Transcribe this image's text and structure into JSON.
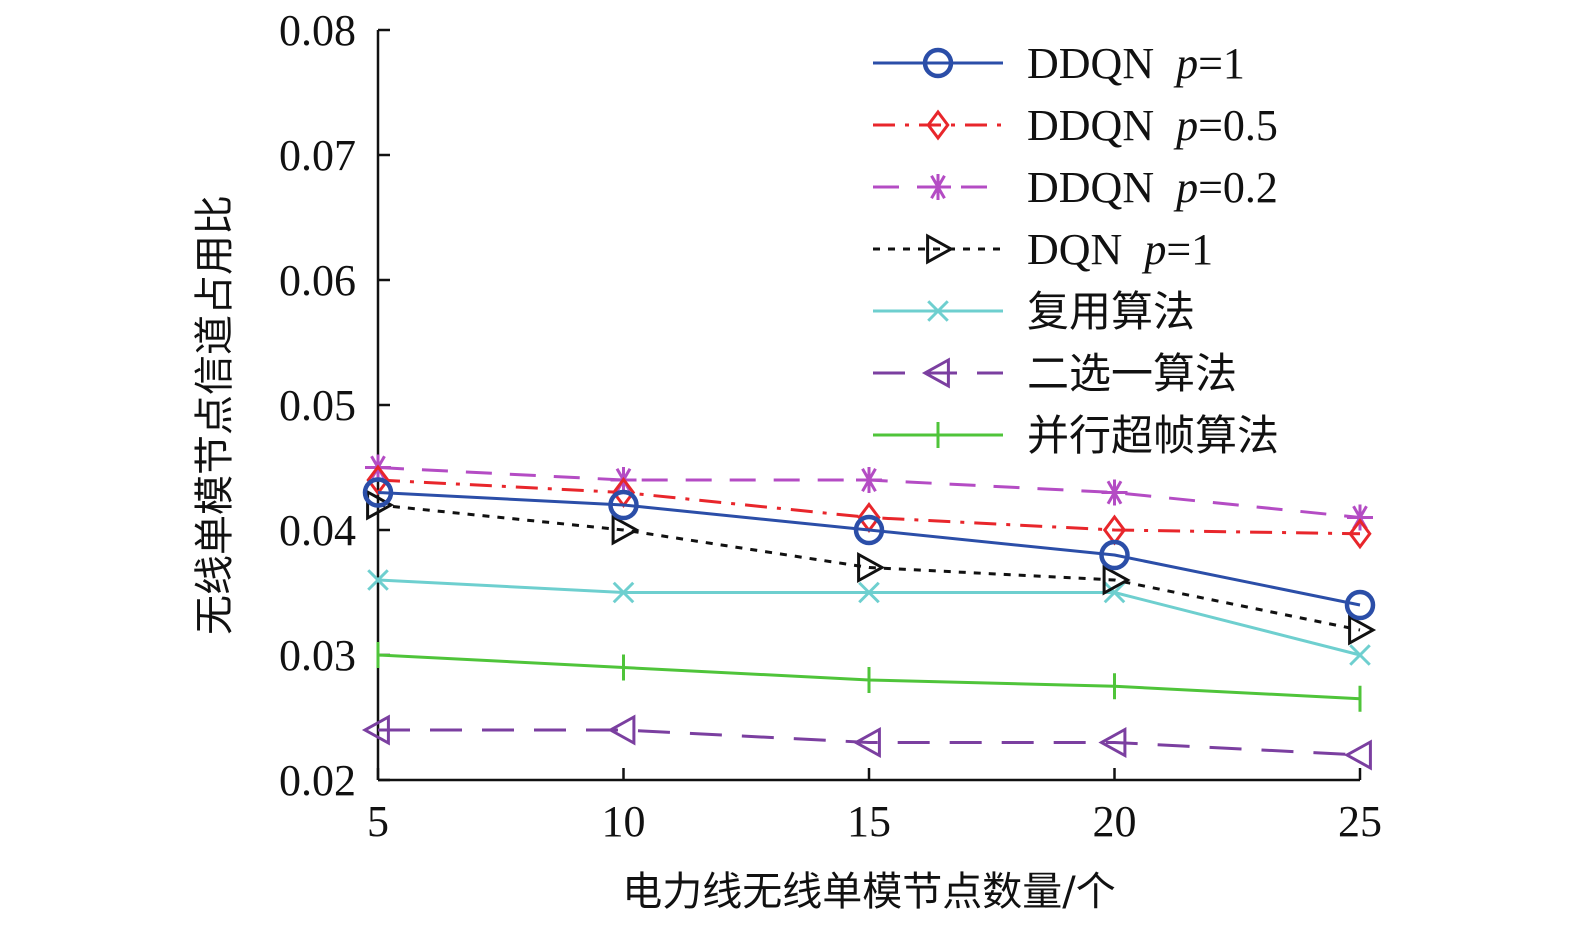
{
  "chart_data": {
    "type": "line",
    "title": "",
    "xlabel": "电力线无线单模节点数量/个",
    "ylabel": "无线单模节点信道占用比",
    "x": [
      5,
      10,
      15,
      20,
      25
    ],
    "xlim": [
      5,
      25
    ],
    "ylim": [
      0.02,
      0.08
    ],
    "xticks": [
      "5",
      "10",
      "15",
      "20",
      "25"
    ],
    "yticks": [
      "0.02",
      "0.03",
      "0.04",
      "0.05",
      "0.06",
      "0.07",
      "0.08"
    ],
    "grid": false,
    "legend_position": "top-right",
    "series": [
      {
        "name": "DDQN p=1",
        "label_main": "DDQN",
        "label_param": "p",
        "label_value": "=1",
        "color": "#2b4ea8",
        "dash": "solid",
        "marker": "circle",
        "values": [
          0.043,
          0.042,
          0.04,
          0.038,
          0.034
        ]
      },
      {
        "name": "DDQN p=0.5",
        "label_main": "DDQN",
        "label_param": "p",
        "label_value": "=0.5",
        "color": "#e8262b",
        "dash": "dashdot",
        "marker": "diamond",
        "values": [
          0.044,
          0.043,
          0.041,
          0.04,
          0.0397
        ]
      },
      {
        "name": "DDQN p=0.2",
        "label_main": "DDQN",
        "label_param": "p",
        "label_value": "=0.2",
        "color": "#b44cc4",
        "dash": "dashed",
        "marker": "asterisk",
        "values": [
          0.045,
          0.044,
          0.044,
          0.043,
          0.041
        ]
      },
      {
        "name": "DQN p=1",
        "label_main": "DQN",
        "label_param": "p",
        "label_value": "=1",
        "color": "#111111",
        "dash": "dotted",
        "marker": "triangle-right",
        "values": [
          0.042,
          0.04,
          0.037,
          0.036,
          0.032
        ]
      },
      {
        "name": "复用算法",
        "label_main": "复用算法",
        "label_param": "",
        "label_value": "",
        "color": "#6ecfcf",
        "dash": "solid",
        "marker": "x",
        "values": [
          0.036,
          0.035,
          0.035,
          0.035,
          0.03
        ]
      },
      {
        "name": "二选一算法",
        "label_main": "二选一算法",
        "label_param": "",
        "label_value": "",
        "color": "#7b3fa0",
        "dash": "longdash",
        "marker": "triangle-left",
        "values": [
          0.024,
          0.024,
          0.023,
          0.023,
          0.022
        ]
      },
      {
        "name": "并行超帧算法",
        "label_main": "并行超帧算法",
        "label_param": "",
        "label_value": "",
        "color": "#4fc43a",
        "dash": "solid",
        "marker": "plus",
        "values": [
          0.03,
          0.029,
          0.028,
          0.0275,
          0.0265
        ]
      }
    ]
  }
}
